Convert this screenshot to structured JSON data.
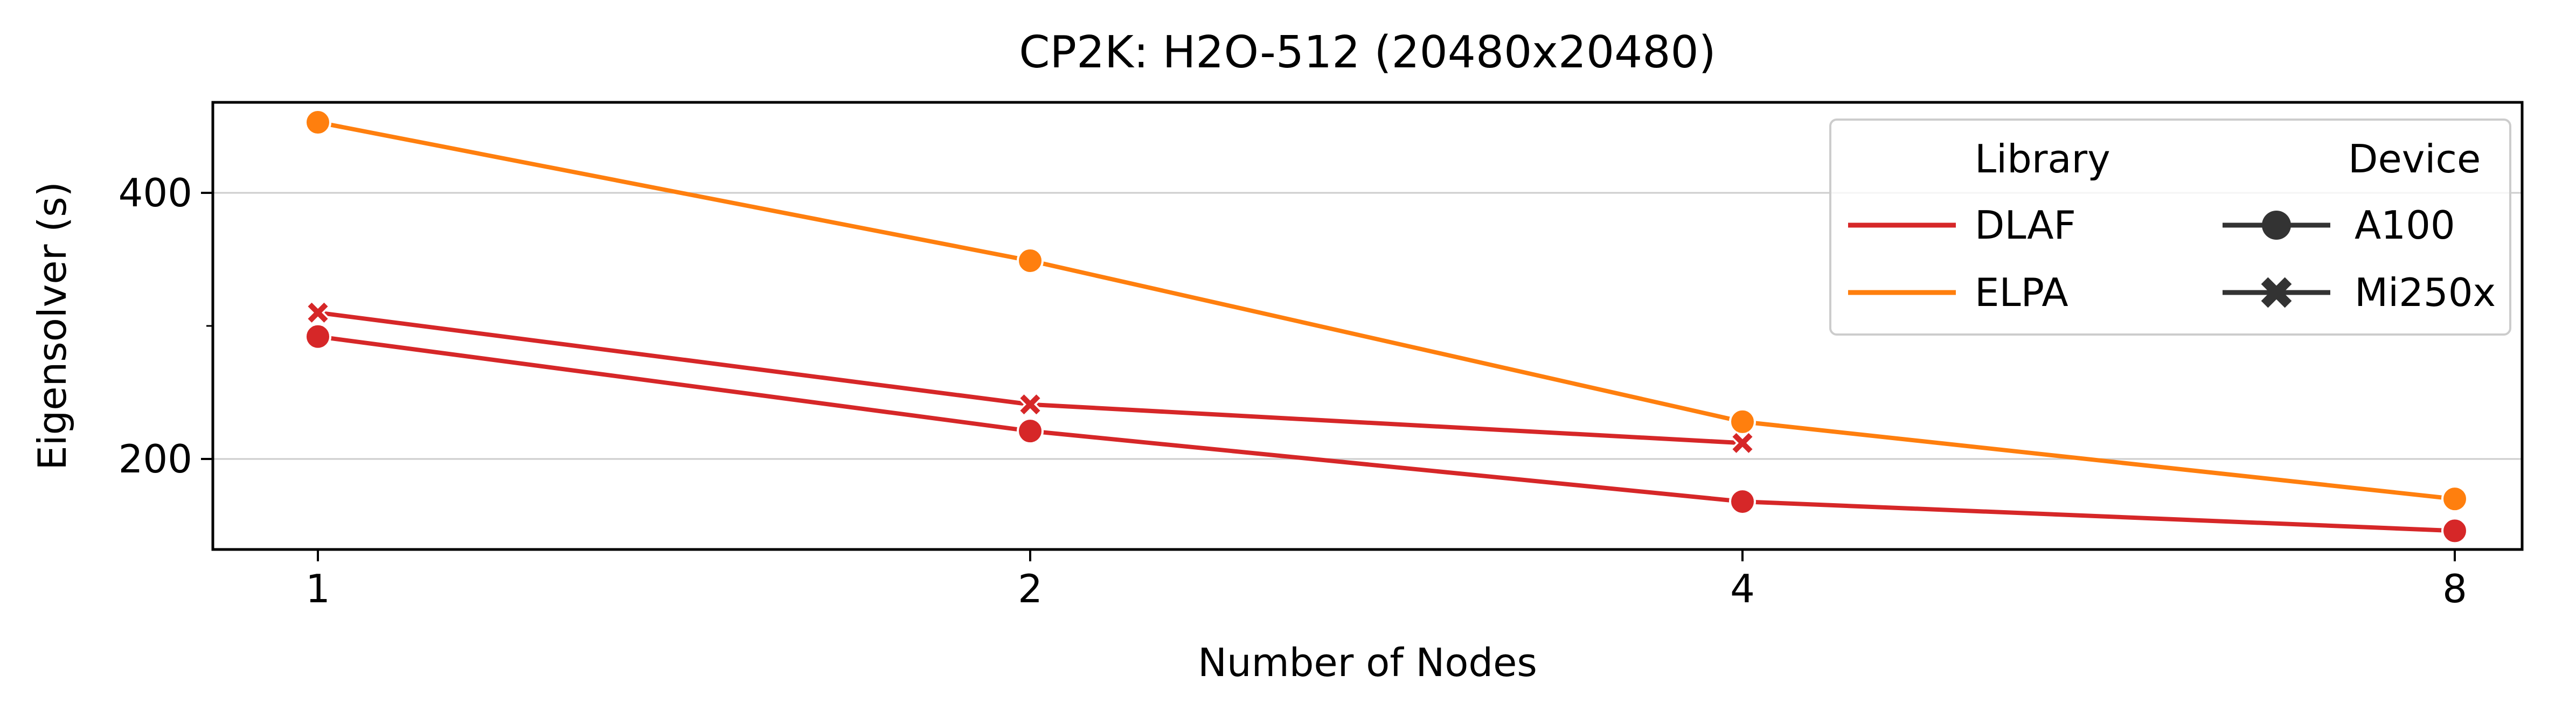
{
  "chart_data": {
    "type": "line",
    "title": "CP2K: H2O-512 (20480x20480)",
    "xlabel": "Number of Nodes",
    "ylabel": "Eigensolver (s)",
    "x_scale": "log2",
    "x_ticks": [
      1,
      2,
      4,
      8
    ],
    "x_tick_labels": [
      "1",
      "2",
      "4",
      "8"
    ],
    "ylim": [
      132,
      468
    ],
    "y_ticks": [
      200,
      400
    ],
    "y_tick_labels": [
      "200",
      "400"
    ],
    "y_minor_ticks": [
      300
    ],
    "grid": "horizontal-major",
    "legend": {
      "placement": "top-right",
      "library_title": "Library",
      "device_title": "Device",
      "library": [
        {
          "label": "DLAF",
          "color": "#d62728"
        },
        {
          "label": "ELPA",
          "color": "#ff7f0e"
        }
      ],
      "device": [
        {
          "label": "A100",
          "marker": "circle"
        },
        {
          "label": "Mi250x",
          "marker": "x"
        }
      ],
      "marker_color": "#333333"
    },
    "series": [
      {
        "library": "ELPA",
        "device": "A100",
        "color": "#ff7f0e",
        "marker": "circle",
        "x": [
          1,
          2,
          4,
          8
        ],
        "values": [
          453,
          349,
          228,
          170
        ]
      },
      {
        "library": "DLAF",
        "device": "Mi250x",
        "color": "#d62728",
        "marker": "x",
        "x": [
          1,
          2,
          4
        ],
        "values": [
          310,
          241,
          212
        ]
      },
      {
        "library": "DLAF",
        "device": "A100",
        "color": "#d62728",
        "marker": "circle",
        "x": [
          1,
          2,
          4,
          8
        ],
        "values": [
          292,
          221,
          168,
          146
        ]
      }
    ]
  }
}
